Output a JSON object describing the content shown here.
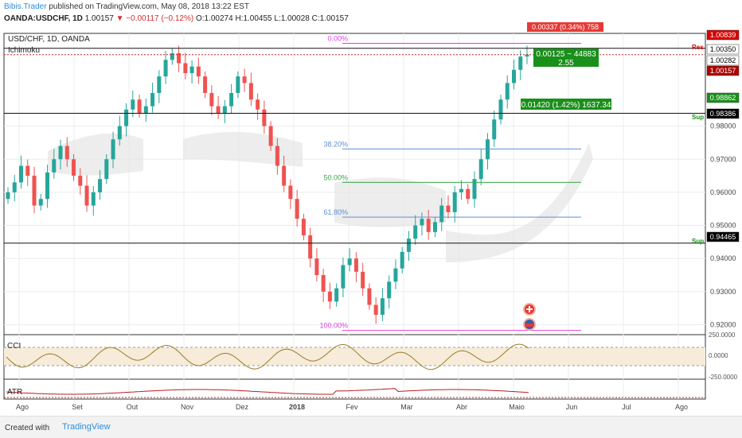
{
  "header": {
    "author": "Bibis.Trader",
    "published": "published on TradingView.com, May 08, 2018 13:22 EST",
    "symbol": "OANDA:USDCHF, 1D",
    "last": "1.00157",
    "change": "▼ −0.00117 (−0.12%)",
    "ohlc": "O:1.00274 H:1.00455 L:1.00028 C:1.00157"
  },
  "chart_labels": {
    "pair": "USD/CHF, 1D, OANDA",
    "indicator": "Ichimoku",
    "res": "Res",
    "sup1": "Sup",
    "sup2": "Sup",
    "cci": "CCI",
    "atr": "ATR"
  },
  "fib_levels": [
    {
      "label": "0.00%",
      "color": "#e040e0"
    },
    {
      "label": "38.20%",
      "color": "#5c8fd6"
    },
    {
      "label": "50.00%",
      "color": "#3aa64a"
    },
    {
      "label": "61.80%",
      "color": "#5c8fd6"
    },
    {
      "label": "100.00%",
      "color": "#e040e0"
    }
  ],
  "price_scale": [
    "0.98000",
    "0.97000",
    "0.96000",
    "0.95000",
    "0.94000",
    "0.93000",
    "0.92000"
  ],
  "price_tags": [
    {
      "label": "1.00839",
      "bg": "#d60000",
      "fg": "#ffffff"
    },
    {
      "label": "1.00350",
      "bg": "#ffffff",
      "fg": "#000000"
    },
    {
      "label": "1.00282",
      "bg": "#ffffff",
      "fg": "#000000"
    },
    {
      "label": "1.00157",
      "bg": "#b00000",
      "fg": "#ffffff"
    },
    {
      "label": "0.98862",
      "bg": "#1a8f1a",
      "fg": "#ffffff"
    },
    {
      "label": "0.98386",
      "bg": "#000000",
      "fg": "#ffffff"
    },
    {
      "label": "0.94465",
      "bg": "#000000",
      "fg": "#ffffff"
    }
  ],
  "cci_scale": [
    "250.0000",
    "0.0000",
    "-250.0000"
  ],
  "time_axis": [
    "Ago",
    "Set",
    "Out",
    "Nov",
    "Dez",
    "2018",
    "Fev",
    "Mar",
    "Abr",
    "Maio",
    "Jun",
    "Jul",
    "Ago"
  ],
  "boxes": {
    "top_red": "0.00337 (0.34%) 758",
    "green1_line1": "0.00125 ~ 44883",
    "green1_line2": "2.55",
    "green2": "0.01420 (1.42%) 1637.34"
  },
  "footer": {
    "created": "Created with",
    "brand": "TradingView"
  },
  "colors": {
    "up": "#26a69a",
    "down": "#ef5350",
    "grid": "#e8ecef",
    "cloud": "#e6e6e6"
  },
  "chart_data": {
    "type": "candlestick",
    "title": "USD/CHF, 1D, OANDA",
    "ylim": [
      0.917,
      1.008
    ],
    "closes": [
      0.96,
      0.963,
      0.968,
      0.965,
      0.956,
      0.958,
      0.966,
      0.97,
      0.974,
      0.97,
      0.965,
      0.962,
      0.956,
      0.96,
      0.964,
      0.97,
      0.976,
      0.98,
      0.985,
      0.988,
      0.984,
      0.986,
      0.99,
      0.995,
      1.0,
      1.002,
      0.999,
      0.996,
      0.998,
      0.995,
      0.99,
      0.986,
      0.984,
      0.986,
      0.99,
      0.995,
      0.993,
      0.988,
      0.985,
      0.98,
      0.974,
      0.968,
      0.962,
      0.958,
      0.952,
      0.947,
      0.94,
      0.935,
      0.93,
      0.927,
      0.931,
      0.938,
      0.94,
      0.936,
      0.931,
      0.926,
      0.923,
      0.928,
      0.933,
      0.937,
      0.942,
      0.946,
      0.95,
      0.952,
      0.948,
      0.951,
      0.956,
      0.954,
      0.96,
      0.961,
      0.958,
      0.964,
      0.97,
      0.976,
      0.982,
      0.988,
      0.993,
      0.997,
      1.001,
      1.0016
    ],
    "ohlc_last": {
      "o": 1.00274,
      "h": 1.00455,
      "l": 1.00028,
      "c": 1.00157
    },
    "horizontal_lines": [
      1.0035,
      0.98386,
      0.94465
    ],
    "fib_retracement": {
      "0.00%": 1.005,
      "38.20%": 0.9731,
      "50.00%": 0.963,
      "61.80%": 0.9525,
      "100.00%": 0.9183
    }
  }
}
